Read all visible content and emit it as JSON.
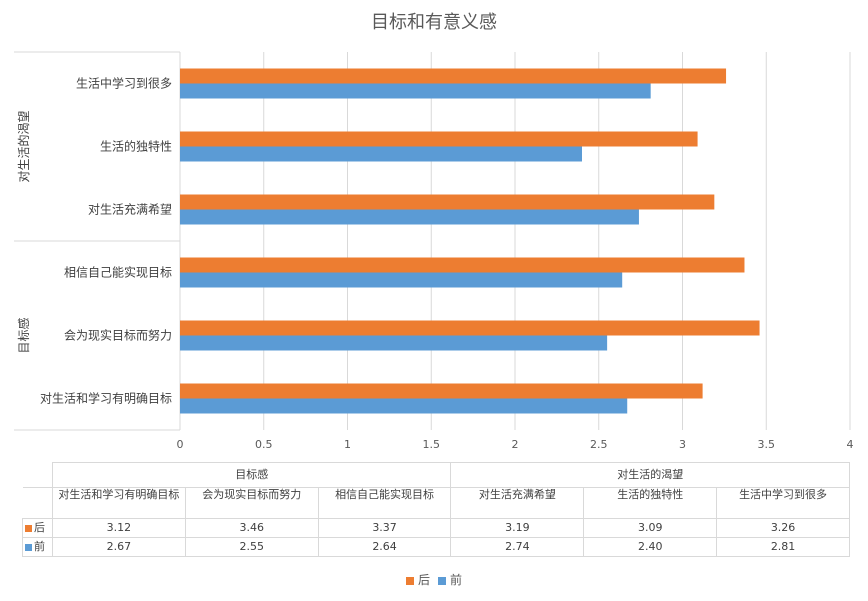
{
  "chart_data": {
    "type": "bar",
    "orientation": "horizontal",
    "title": "目标和有意义感",
    "categories": [
      "对生活和学习有明确目标",
      "会为现实目标而努力",
      "相信自己能实现目标",
      "对生活充满希望",
      "生活的独特性",
      "生活中学习到很多"
    ],
    "groups": [
      {
        "label": "目标感",
        "categories": [
          "对生活和学习有明确目标",
          "会为现实目标而努力",
          "相信自己能实现目标"
        ]
      },
      {
        "label": "对生活的渴望",
        "categories": [
          "对生活充满希望",
          "生活的独特性",
          "生活中学习到很多"
        ]
      }
    ],
    "series": [
      {
        "name": "后",
        "color": "#ed7d31",
        "values": [
          3.12,
          3.46,
          3.37,
          3.19,
          3.09,
          3.26
        ],
        "labels": [
          "3.12",
          "3.46",
          "3.37",
          "3.19",
          "3.09",
          "3.26"
        ]
      },
      {
        "name": "前",
        "color": "#5b9bd5",
        "values": [
          2.67,
          2.55,
          2.64,
          2.74,
          2.4,
          2.81
        ],
        "labels": [
          "2.67",
          "2.55",
          "2.64",
          "2.74",
          "2.40",
          "2.81"
        ]
      }
    ],
    "xlim": [
      0,
      4
    ],
    "xticks": [
      "0",
      "0.5",
      "1",
      "1.5",
      "2",
      "2.5",
      "3",
      "3.5",
      "4"
    ],
    "grid": true,
    "legend_position": "bottom",
    "data_table": true
  }
}
